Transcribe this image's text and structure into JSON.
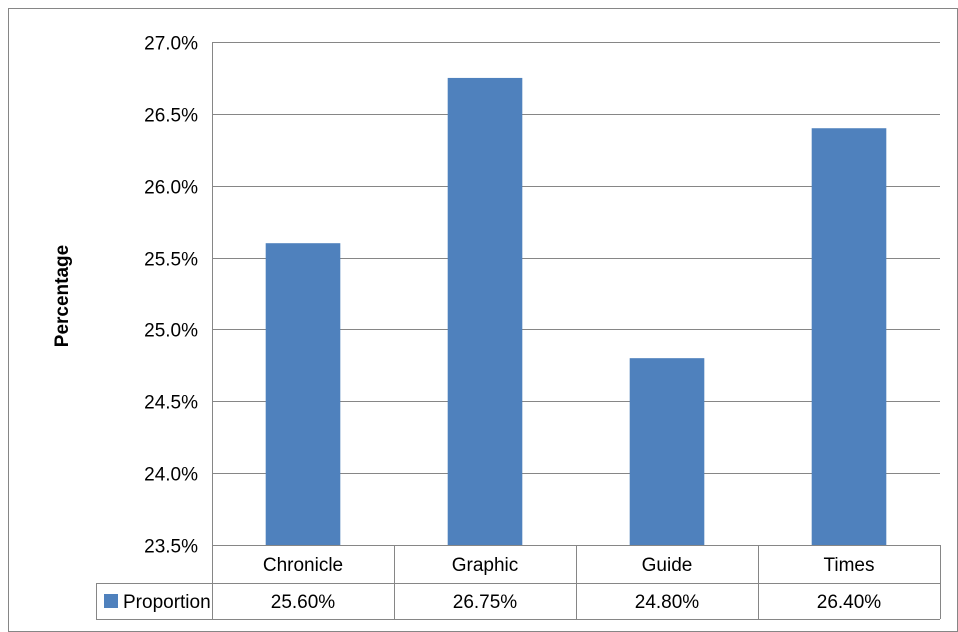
{
  "chart_data": {
    "type": "bar",
    "categories": [
      "Chronicle",
      "Graphic",
      "Guide",
      "Times"
    ],
    "series": [
      {
        "name": "Proportion",
        "values": [
          25.6,
          26.75,
          24.8,
          26.4
        ],
        "labels": [
          "25.60%",
          "26.75%",
          "24.80%",
          "26.40%"
        ],
        "color": "#4F81BD"
      }
    ],
    "ylabel": "Percentage",
    "xlabel": "",
    "ylim": [
      23.5,
      27.0
    ],
    "yticks": [
      23.5,
      24.0,
      24.5,
      25.0,
      25.5,
      26.0,
      26.5,
      27.0
    ],
    "ytick_labels": [
      "23.5%",
      "24.0%",
      "24.5%",
      "25.0%",
      "25.5%",
      "26.0%",
      "26.5%",
      "27.0%"
    ],
    "grid": true,
    "legend": "data-table"
  }
}
